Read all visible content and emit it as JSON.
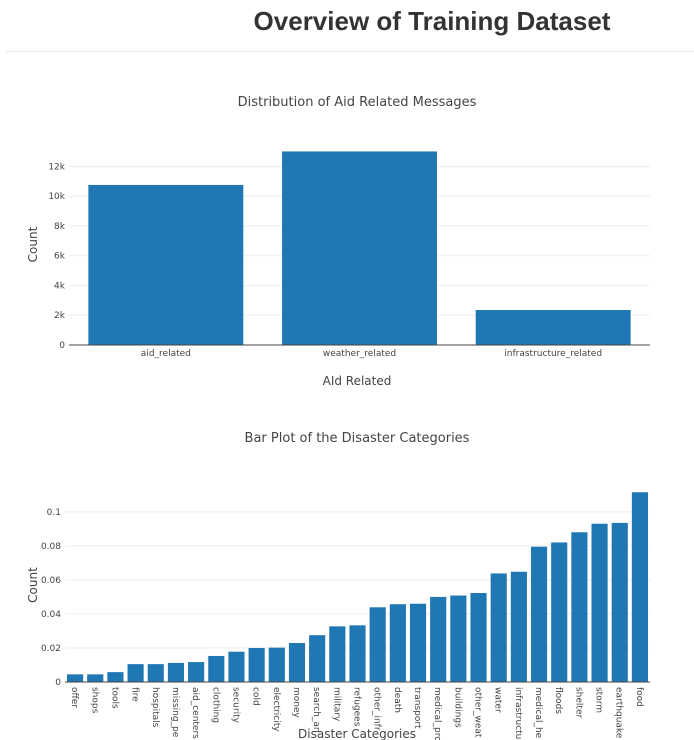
{
  "page": {
    "title": "Overview of Training Dataset"
  },
  "chart_data": [
    {
      "type": "bar",
      "title": "Distribution of Aid Related Messages",
      "xlabel": "AId Related",
      "ylabel": "Count",
      "categories": [
        "aid_related",
        "weather_related",
        "infrastructure_related"
      ],
      "values": [
        10750,
        13000,
        2350
      ],
      "ylim": [
        0,
        13500
      ],
      "yticks": [
        0,
        2000,
        4000,
        6000,
        8000,
        10000,
        12000
      ],
      "ytick_labels": [
        "0",
        "2k",
        "4k",
        "6k",
        "8k",
        "10k",
        "12k"
      ],
      "grid": true,
      "color": "#1f77b4"
    },
    {
      "type": "bar",
      "title": "Bar Plot of the Disaster Categories",
      "xlabel": "Disaster Categories",
      "ylabel": "Count",
      "categories": [
        "offer",
        "shops",
        "tools",
        "fire",
        "hospitals",
        "missing_pe",
        "aid_centers",
        "clothing",
        "security",
        "cold",
        "electricity",
        "money",
        "search_an",
        "military",
        "refugees",
        "other_infr",
        "death",
        "transport",
        "medical_pro",
        "buildings",
        "other_weat",
        "water",
        "infrastructu",
        "medical_he",
        "floods",
        "shelter",
        "storm",
        "earthquake",
        "food"
      ],
      "values": [
        0.0045,
        0.0045,
        0.0058,
        0.0105,
        0.0105,
        0.0112,
        0.0117,
        0.0153,
        0.0178,
        0.02,
        0.0202,
        0.0229,
        0.0275,
        0.0327,
        0.0333,
        0.0439,
        0.0457,
        0.046,
        0.05,
        0.0508,
        0.0523,
        0.0638,
        0.0648,
        0.0795,
        0.082,
        0.088,
        0.093,
        0.0935,
        0.1115
      ],
      "ylim": [
        0,
        0.114
      ],
      "yticks": [
        0,
        0.02,
        0.04,
        0.06,
        0.08,
        0.1
      ],
      "ytick_labels": [
        "0",
        "0.02",
        "0.04",
        "0.06",
        "0.08",
        "0.1"
      ],
      "grid": true,
      "color": "#1f77b4"
    }
  ]
}
